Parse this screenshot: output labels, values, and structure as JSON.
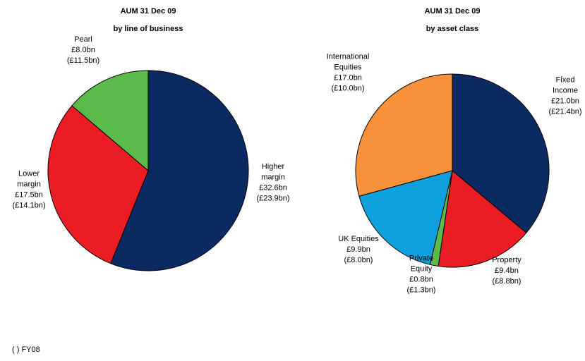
{
  "chart_data": [
    {
      "type": "pie",
      "title": [
        "AUM 31 Dec 09",
        "by line of business"
      ],
      "start_angle_deg": 0,
      "direction": "clockwise",
      "slices": [
        {
          "name": "Higher margin",
          "value": 32.6,
          "label": [
            "Higher",
            "margin",
            "£32.6bn",
            "(£23.9bn)"
          ],
          "color": "#0c2a62"
        },
        {
          "name": "Lower margin",
          "value": 17.5,
          "label": [
            "Lower",
            "margin",
            "£17.5bn",
            "(£14.1bn)"
          ],
          "color": "#ec1c24"
        },
        {
          "name": "Pearl",
          "value": 8.0,
          "label": [
            "Pearl",
            "£8.0bn",
            "(£11.5bn)"
          ],
          "color": "#5bbb4a"
        }
      ]
    },
    {
      "type": "pie",
      "title": [
        "AUM 31 Dec 09",
        "by asset class"
      ],
      "start_angle_deg": 0,
      "direction": "clockwise",
      "slices": [
        {
          "name": "Fixed Income",
          "value": 21.0,
          "label": [
            "Fixed",
            "Income",
            "£21.0bn",
            "(£21.4bn)"
          ],
          "color": "#0c2a62"
        },
        {
          "name": "Property",
          "value": 9.4,
          "label": [
            "Property",
            "£9.4bn",
            "(£8.8bn)"
          ],
          "color": "#ec1c24"
        },
        {
          "name": "Private Equity",
          "value": 0.8,
          "label": [
            "Private",
            "Equity",
            "£0.8bn",
            "(£1.3bn)"
          ],
          "color": "#5bbb4a"
        },
        {
          "name": "UK Equities",
          "value": 9.9,
          "label": [
            "UK Equities",
            "£9.9bn",
            "(£8.0bn)"
          ],
          "color": "#0da0dc"
        },
        {
          "name": "International Equities",
          "value": 17.0,
          "label": [
            "International",
            "Equities",
            "£17.0bn",
            "(£10.0bn)"
          ],
          "color": "#f7923a"
        }
      ]
    }
  ],
  "footnote": "( ) FY08"
}
